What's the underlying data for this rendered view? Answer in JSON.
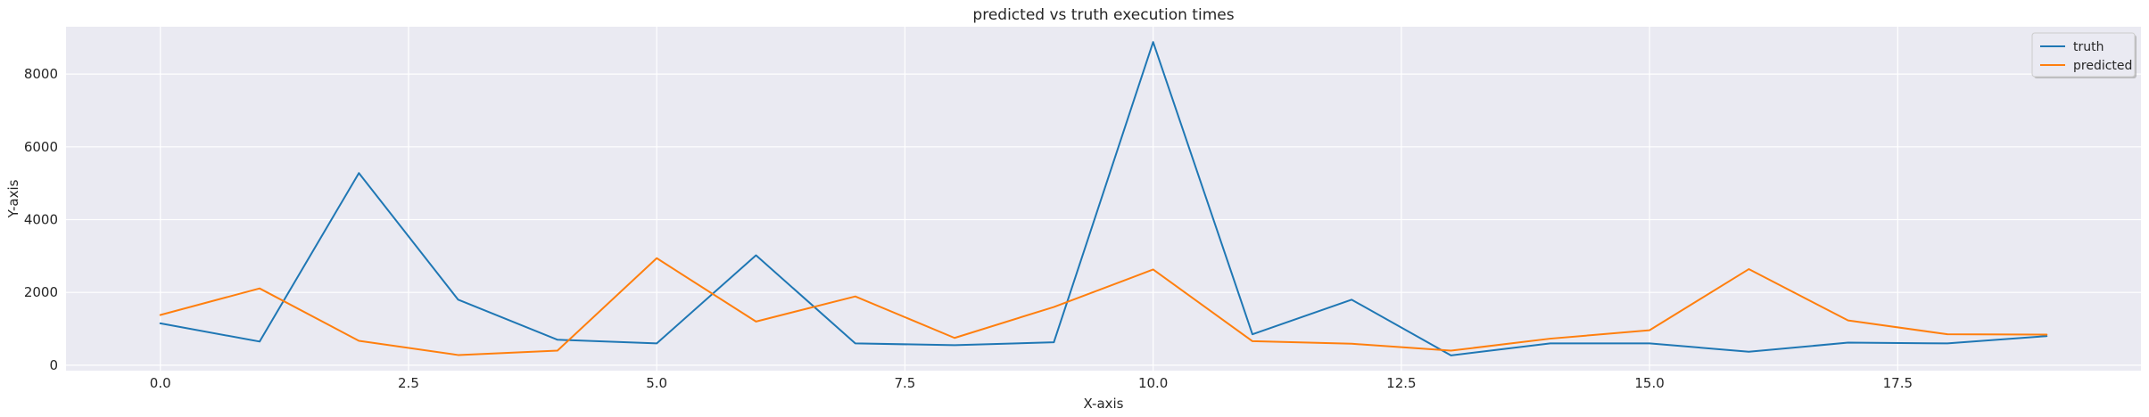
{
  "chart_data": {
    "type": "line",
    "title": "predicted vs truth execution times",
    "xlabel": "X-axis",
    "ylabel": "Y-axis",
    "xlim": [
      -0.95,
      19.95
    ],
    "ylim": [
      -150,
      9300
    ],
    "xticks": [
      0.0,
      2.5,
      5.0,
      7.5,
      10.0,
      12.5,
      15.0,
      17.5
    ],
    "xtick_labels": [
      "0.0",
      "2.5",
      "5.0",
      "7.5",
      "10.0",
      "12.5",
      "15.0",
      "17.5"
    ],
    "yticks": [
      0,
      2000,
      4000,
      6000,
      8000
    ],
    "ytick_labels": [
      "0",
      "2000",
      "4000",
      "6000",
      "8000"
    ],
    "grid": true,
    "legend_position": "top-right",
    "x": [
      0,
      1,
      2,
      3,
      4,
      5,
      6,
      7,
      8,
      9,
      10,
      11,
      12,
      13,
      14,
      15,
      16,
      17,
      18,
      19
    ],
    "series": [
      {
        "name": "truth",
        "color": "#1f77b4",
        "values": [
          1150,
          650,
          5280,
          1800,
          700,
          600,
          3020,
          600,
          550,
          630,
          8880,
          850,
          1800,
          270,
          600,
          600,
          370,
          620,
          600,
          800
        ]
      },
      {
        "name": "predicted",
        "color": "#ff7f0e",
        "values": [
          1380,
          2110,
          670,
          280,
          400,
          2940,
          1200,
          1890,
          750,
          1600,
          2630,
          660,
          590,
          400,
          730,
          960,
          2640,
          1230,
          850,
          840
        ]
      }
    ]
  }
}
